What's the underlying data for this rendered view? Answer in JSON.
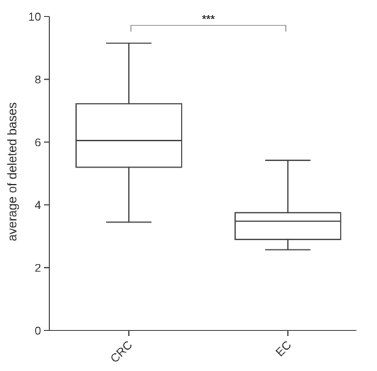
{
  "chart_data": {
    "type": "box",
    "ylabel": "average of deleted bases",
    "xlabel": "",
    "ylim": [
      0,
      10
    ],
    "y_ticks": [
      0,
      2,
      4,
      6,
      8,
      10
    ],
    "categories": [
      "CRC",
      "EC"
    ],
    "boxes": [
      {
        "category": "CRC",
        "whisker_low": 3.45,
        "q1": 5.2,
        "median": 6.05,
        "q3": 7.22,
        "whisker_high": 9.15
      },
      {
        "category": "EC",
        "whisker_low": 2.57,
        "q1": 2.9,
        "median": 3.48,
        "q3": 3.75,
        "whisker_high": 5.42
      }
    ],
    "significance": {
      "label": "***",
      "between": [
        "CRC",
        "EC"
      ]
    },
    "grid": false,
    "tick_label_rotation": -45
  }
}
